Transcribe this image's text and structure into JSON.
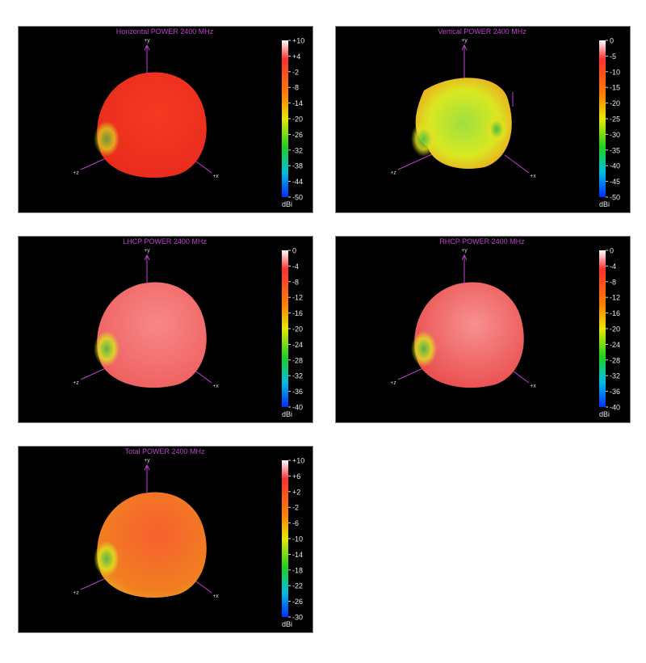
{
  "panels": [
    {
      "title": "Horizontal POWER 2400  MHz",
      "ticks": [
        "+10",
        "+4",
        "-2",
        "-8",
        "-14",
        "-20",
        "-26",
        "-32",
        "-38",
        "-44",
        "-50"
      ],
      "unit": "dBi",
      "axis_labels": {
        "y": "+y",
        "z": "+z",
        "x": "+x"
      }
    },
    {
      "title": "Vertical POWER 2400  MHz",
      "ticks": [
        "0",
        "-5",
        "-10",
        "-15",
        "-20",
        "-25",
        "-30",
        "-35",
        "-40",
        "-45",
        "-50"
      ],
      "unit": "dBi",
      "axis_labels": {
        "y": "+y",
        "z": "+z",
        "x": "+x"
      }
    },
    {
      "title": "LHCP POWER 2400  MHz",
      "ticks": [
        "0",
        "-4",
        "-8",
        "-12",
        "-16",
        "-20",
        "-24",
        "-28",
        "-32",
        "-36",
        "-40"
      ],
      "unit": "dBi",
      "axis_labels": {
        "y": "+y",
        "z": "+z",
        "x": "+x"
      }
    },
    {
      "title": "RHCP POWER 2400  MHz",
      "ticks": [
        "0",
        "-4",
        "-8",
        "-12",
        "-16",
        "-20",
        "-24",
        "-28",
        "-32",
        "-36",
        "-40"
      ],
      "unit": "dBi",
      "axis_labels": {
        "y": "+y",
        "z": "+z",
        "x": "+x"
      }
    },
    {
      "title": "Total POWER 2400  MHz",
      "ticks": [
        "+10",
        "+6",
        "+2",
        "-2",
        "-6",
        "-10",
        "-14",
        "-18",
        "-22",
        "-26",
        "-30"
      ],
      "unit": "dBi",
      "axis_labels": {
        "y": "+y",
        "z": "+z",
        "x": "+x"
      }
    }
  ]
}
